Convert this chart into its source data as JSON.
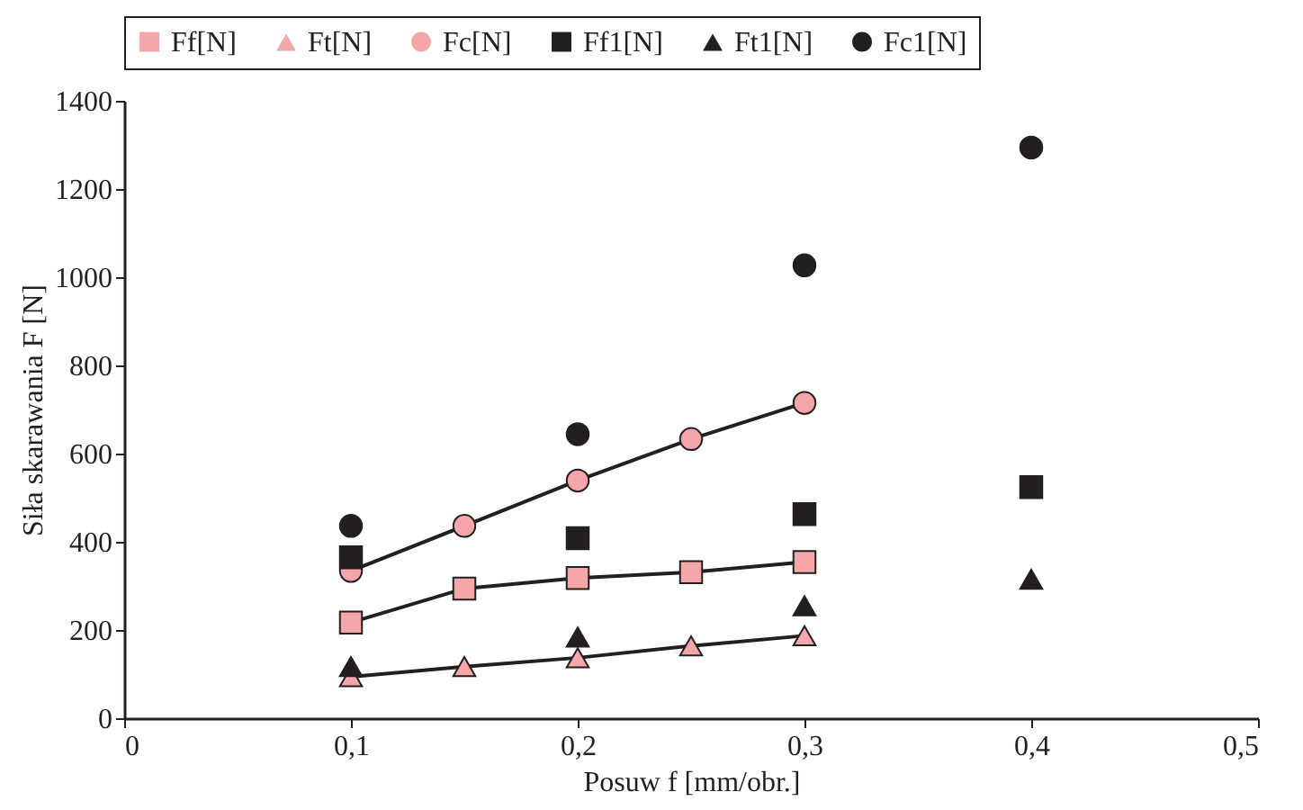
{
  "chart_data": {
    "type": "line",
    "xlabel": "Posuw f [mm/obr.]",
    "ylabel": "Siła skarawania F [N]",
    "xlim": [
      0,
      0.5
    ],
    "ylim": [
      0,
      1400
    ],
    "xticks": [
      {
        "value": 0,
        "label": "0"
      },
      {
        "value": 0.1,
        "label": "0,1"
      },
      {
        "value": 0.2,
        "label": "0,2"
      },
      {
        "value": 0.3,
        "label": "0,3"
      },
      {
        "value": 0.4,
        "label": "0,4"
      },
      {
        "value": 0.5,
        "label": "0,5"
      }
    ],
    "yticks": [
      0,
      200,
      400,
      600,
      800,
      1000,
      1200,
      1400
    ],
    "legend": "top",
    "grid": false,
    "series": [
      {
        "name": "Ff[N]",
        "marker": "square",
        "color": "#f4a6a8",
        "x": [
          0.1,
          0.15,
          0.2,
          0.25,
          0.3
        ],
        "values": [
          217,
          294,
          318,
          331,
          354
        ]
      },
      {
        "name": "Ft[N]",
        "marker": "triangle",
        "color": "#f4a6a8",
        "x": [
          0.1,
          0.15,
          0.2,
          0.25,
          0.3
        ],
        "values": [
          94,
          117,
          137,
          164,
          187
        ]
      },
      {
        "name": "Fc[N]",
        "marker": "circle",
        "color": "#f4a6a8",
        "x": [
          0.1,
          0.15,
          0.2,
          0.25,
          0.3
        ],
        "values": [
          334,
          436,
          539,
          633,
          715
        ]
      },
      {
        "name": "Ff1[N]",
        "type": "scatter",
        "marker": "square",
        "color": "#231f20",
        "x": [
          0.1,
          0.2,
          0.3,
          0.4
        ],
        "values": [
          365,
          408,
          463,
          524
        ]
      },
      {
        "name": "Ft1[N]",
        "type": "scatter",
        "marker": "triangle",
        "color": "#231f20",
        "x": [
          0.1,
          0.2,
          0.3,
          0.4
        ],
        "values": [
          117,
          184,
          255,
          315
        ]
      },
      {
        "name": "Fc1[N]",
        "type": "scatter",
        "marker": "circle",
        "color": "#231f20",
        "x": [
          0.1,
          0.2,
          0.3,
          0.4
        ],
        "values": [
          436,
          644,
          1027,
          1294
        ]
      }
    ]
  }
}
